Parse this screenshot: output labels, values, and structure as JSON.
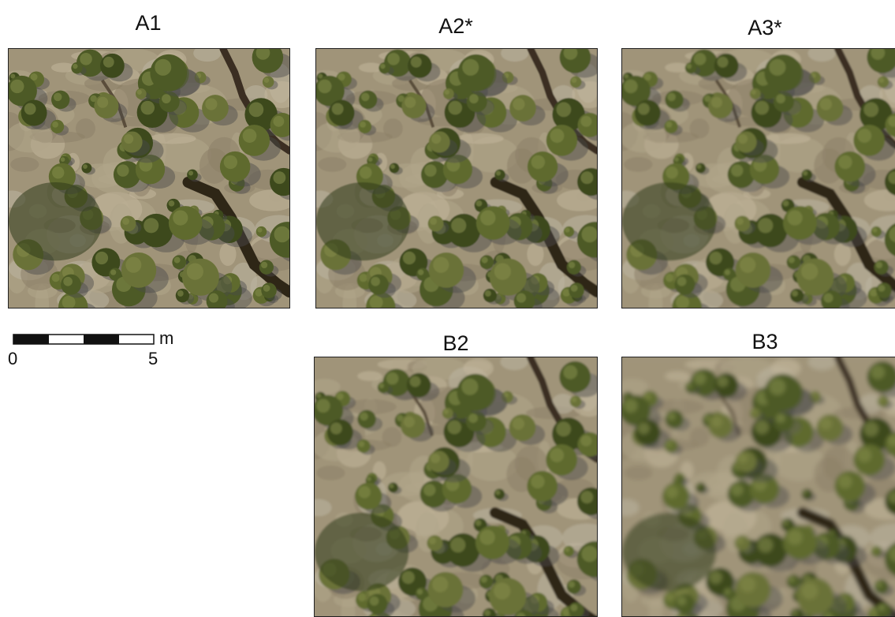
{
  "panels": [
    {
      "id": "A1",
      "label": "A1",
      "blur": 0.4,
      "shift": 0
    },
    {
      "id": "A2",
      "label": "A2*",
      "blur": 0.8,
      "shift": 0
    },
    {
      "id": "A3",
      "label": "A3*",
      "blur": 1.2,
      "shift": 0
    },
    {
      "id": "B2",
      "label": "B2",
      "blur": 1.4,
      "shift": 1
    },
    {
      "id": "B3",
      "label": "B3",
      "blur": 2.6,
      "shift": 1
    }
  ],
  "scale_bar": {
    "zero": "0",
    "max": "5",
    "unit": "m"
  }
}
